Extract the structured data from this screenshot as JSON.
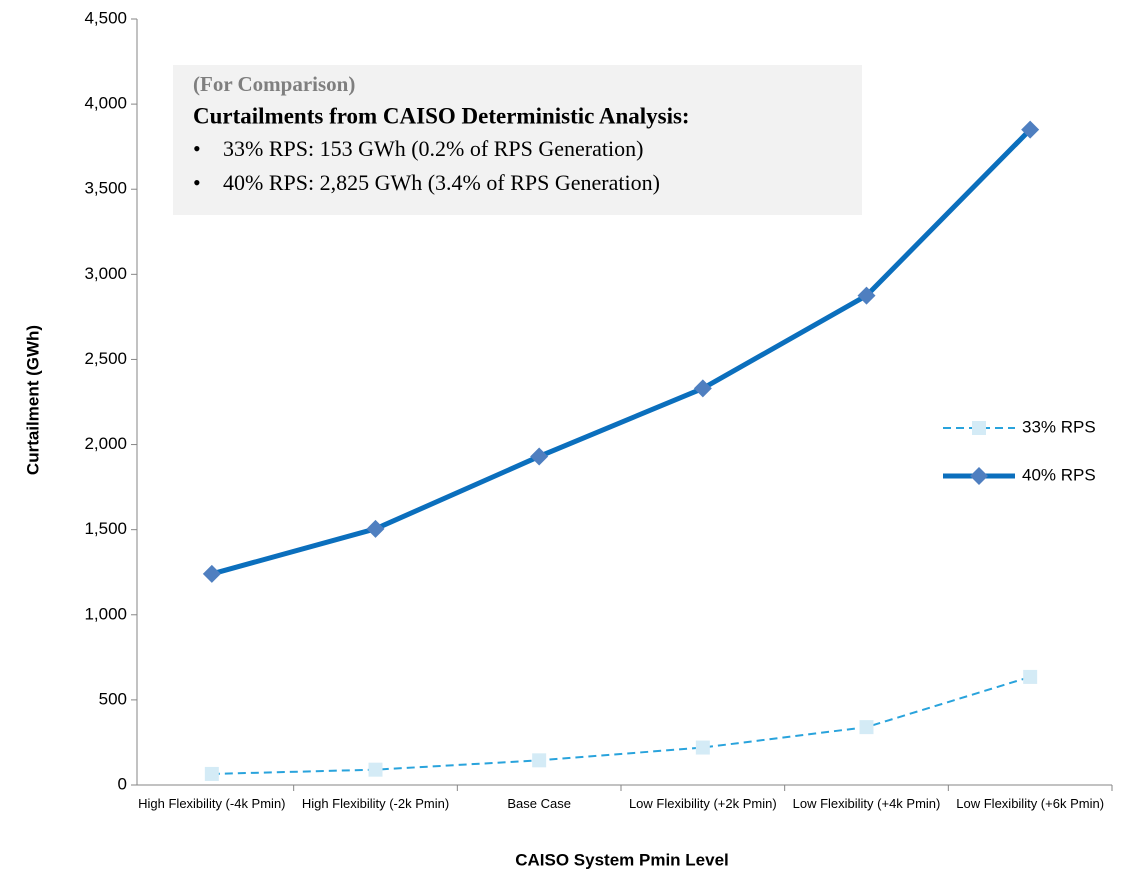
{
  "chart_data": {
    "type": "line",
    "x_label": "CAISO System Pmin Level",
    "y_label": "Curtailment (GWh)",
    "categories": [
      "High Flexibility (-4k Pmin)",
      "High Flexibility (-2k Pmin)",
      "Base Case",
      "Low Flexibility (+2k Pmin)",
      "Low Flexibility (+4k Pmin)",
      "Low Flexibility (+6k Pmin)"
    ],
    "series": [
      {
        "name": "33% RPS",
        "color": "#29a3dc",
        "marker_color": "#d4ebf6",
        "marker": "square",
        "dashed": true,
        "values": [
          65,
          90,
          145,
          220,
          340,
          635
        ]
      },
      {
        "name": "40% RPS",
        "color": "#0b6fbd",
        "marker_color": "#4f7fc0",
        "marker": "diamond",
        "dashed": false,
        "values": [
          1240,
          1505,
          1930,
          2330,
          2875,
          3850
        ]
      }
    ],
    "ylim": [
      0,
      4500
    ],
    "yticks": [
      0,
      500,
      {
        "value": 1000,
        "label": "1,000"
      },
      {
        "value": 1500,
        "label": "1,500"
      },
      {
        "value": 2000,
        "label": "2,000"
      },
      {
        "value": 2500,
        "label": "2,500"
      },
      {
        "value": 3000,
        "label": "3,000"
      },
      {
        "value": 3500,
        "label": "3,500"
      },
      {
        "value": 4000,
        "label": "4,000"
      },
      {
        "value": 4500,
        "label": "4,500"
      }
    ],
    "grid": false,
    "legend": "right",
    "annotation": {
      "heading": "(For Comparison)",
      "title": "Curtailments from CAISO Deterministic Analysis:",
      "bullets": [
        "33% RPS: 153 GWh (0.2% of RPS Generation)",
        "40% RPS: 2,825 GWh (3.4% of RPS Generation)"
      ]
    }
  }
}
